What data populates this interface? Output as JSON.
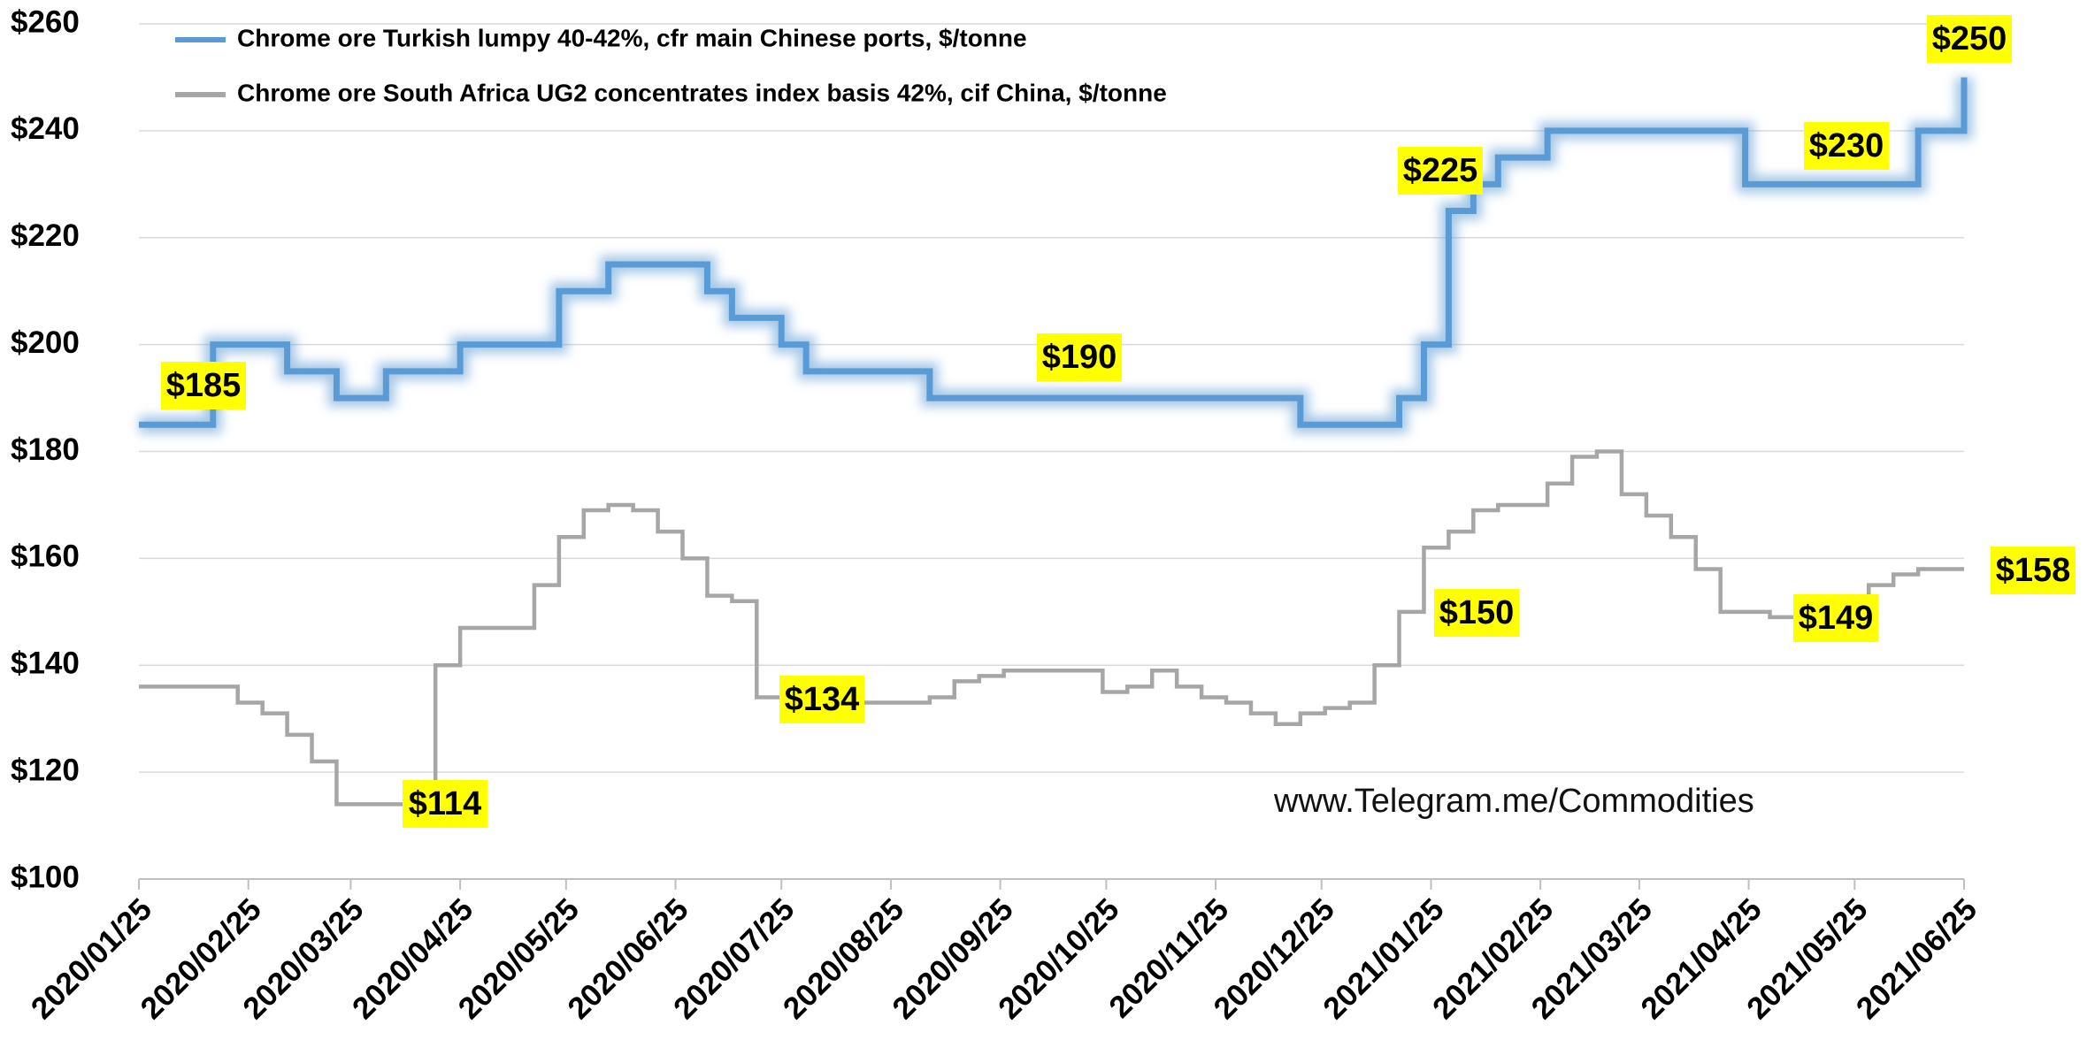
{
  "chart_data": {
    "type": "line",
    "step": true,
    "x": [
      "2020/01/25",
      "2020/02/01",
      "2020/02/08",
      "2020/02/15",
      "2020/02/22",
      "2020/02/29",
      "2020/03/07",
      "2020/03/14",
      "2020/03/21",
      "2020/03/28",
      "2020/04/04",
      "2020/04/11",
      "2020/04/18",
      "2020/04/25",
      "2020/05/02",
      "2020/05/09",
      "2020/05/16",
      "2020/05/23",
      "2020/05/30",
      "2020/06/06",
      "2020/06/13",
      "2020/06/20",
      "2020/06/27",
      "2020/07/04",
      "2020/07/11",
      "2020/07/18",
      "2020/07/25",
      "2020/08/01",
      "2020/08/08",
      "2020/08/15",
      "2020/08/22",
      "2020/08/29",
      "2020/09/05",
      "2020/09/12",
      "2020/09/19",
      "2020/09/26",
      "2020/10/03",
      "2020/10/10",
      "2020/10/17",
      "2020/10/24",
      "2020/10/31",
      "2020/11/07",
      "2020/11/14",
      "2020/11/21",
      "2020/11/28",
      "2020/12/05",
      "2020/12/12",
      "2020/12/19",
      "2020/12/26",
      "2021/01/02",
      "2021/01/09",
      "2021/01/16",
      "2021/01/23",
      "2021/01/30",
      "2021/02/06",
      "2021/02/13",
      "2021/02/20",
      "2021/02/27",
      "2021/03/06",
      "2021/03/13",
      "2021/03/20",
      "2021/03/27",
      "2021/04/03",
      "2021/04/10",
      "2021/04/17",
      "2021/04/24",
      "2021/05/01",
      "2021/05/08",
      "2021/05/15",
      "2021/05/22",
      "2021/05/29",
      "2021/06/05",
      "2021/06/12",
      "2021/06/19",
      "2021/06/25"
    ],
    "series": [
      {
        "name": "Chrome ore Turkish lumpy 40-42%, cfr main Chinese ports, $/tonne",
        "color": "#5b9bd5",
        "glow": true,
        "values": [
          185,
          185,
          185,
          200,
          200,
          200,
          195,
          195,
          190,
          190,
          195,
          195,
          195,
          200,
          200,
          200,
          200,
          210,
          210,
          215,
          215,
          215,
          215,
          210,
          205,
          205,
          200,
          195,
          195,
          195,
          195,
          195,
          190,
          190,
          190,
          190,
          190,
          190,
          190,
          190,
          190,
          190,
          190,
          190,
          190,
          190,
          190,
          185,
          185,
          185,
          185,
          190,
          200,
          225,
          230,
          235,
          235,
          240,
          240,
          240,
          240,
          240,
          240,
          240,
          240,
          230,
          230,
          230,
          230,
          230,
          230,
          230,
          240,
          240,
          250
        ]
      },
      {
        "name": "Chrome ore South Africa UG2 concentrates index basis 42%, cif China, $/tonne",
        "color": "#a6a6a6",
        "glow": false,
        "values": [
          136,
          136,
          136,
          136,
          133,
          131,
          127,
          122,
          114,
          114,
          114,
          114,
          140,
          147,
          147,
          147,
          155,
          164,
          169,
          170,
          169,
          165,
          160,
          153,
          152,
          134,
          133,
          133,
          133,
          133,
          133,
          133,
          134,
          137,
          138,
          139,
          139,
          139,
          139,
          135,
          136,
          139,
          136,
          134,
          133,
          131,
          129,
          131,
          132,
          133,
          140,
          150,
          162,
          165,
          169,
          170,
          170,
          174,
          179,
          180,
          172,
          168,
          164,
          158,
          150,
          150,
          149,
          149,
          150,
          150,
          155,
          157,
          158,
          158,
          158
        ]
      }
    ],
    "xlim": [
      "2020/01/25",
      "2021/06/25"
    ],
    "xticks": [
      "2020/01/25",
      "2020/02/25",
      "2020/03/25",
      "2020/04/25",
      "2020/05/25",
      "2020/06/25",
      "2020/07/25",
      "2020/08/25",
      "2020/09/25",
      "2020/10/25",
      "2020/11/25",
      "2020/12/25",
      "2021/01/25",
      "2021/02/25",
      "2021/03/25",
      "2021/04/25",
      "2021/05/25",
      "2021/06/25"
    ],
    "ylim": [
      100,
      260
    ],
    "yticks": [
      {
        "value": 100,
        "label": "$100"
      },
      {
        "value": 120,
        "label": "$120"
      },
      {
        "value": 140,
        "label": "$140"
      },
      {
        "value": 160,
        "label": "$160"
      },
      {
        "value": 180,
        "label": "$180"
      },
      {
        "value": 200,
        "label": "$200"
      },
      {
        "value": 220,
        "label": "$220"
      },
      {
        "value": 240,
        "label": "$240"
      },
      {
        "value": 260,
        "label": "$260"
      }
    ],
    "grid": true,
    "legend": "top-left",
    "annotations": [
      "$185",
      "$190",
      "$225",
      "$230",
      "$250",
      "$114",
      "$134",
      "$150",
      "$149",
      "$158"
    ],
    "watermark": "www.Telegram.me/Commodities"
  }
}
